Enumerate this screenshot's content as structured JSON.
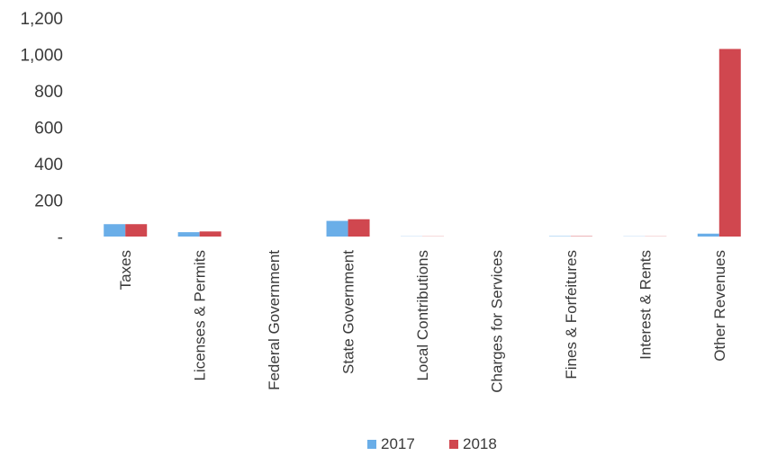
{
  "chart_data": {
    "type": "bar",
    "title": "",
    "xlabel": "",
    "ylabel": "",
    "ylim": [
      0,
      1200
    ],
    "yticks": [
      {
        "value": 0,
        "label": "-"
      },
      {
        "value": 200,
        "label": "200"
      },
      {
        "value": 400,
        "label": "400"
      },
      {
        "value": 600,
        "label": "600"
      },
      {
        "value": 800,
        "label": "800"
      },
      {
        "value": 1000,
        "label": "1,000"
      },
      {
        "value": 1200,
        "label": "1,200"
      }
    ],
    "grid": false,
    "legend_position": "bottom",
    "categories": [
      "Taxes",
      "Licenses & Permits",
      "Federal Government",
      "State Government",
      "Local Contributions",
      "Charges for Services",
      "Fines & Forfeitures",
      "Interest & Rents",
      "Other Revenues"
    ],
    "series": [
      {
        "name": "2017",
        "color": "#6aaee8",
        "values": [
          68,
          24,
          0,
          86,
          1,
          0,
          2,
          1,
          16
        ]
      },
      {
        "name": "2018",
        "color": "#d0474f",
        "values": [
          68,
          28,
          0,
          95,
          1,
          0,
          2,
          1,
          1030
        ]
      }
    ]
  }
}
